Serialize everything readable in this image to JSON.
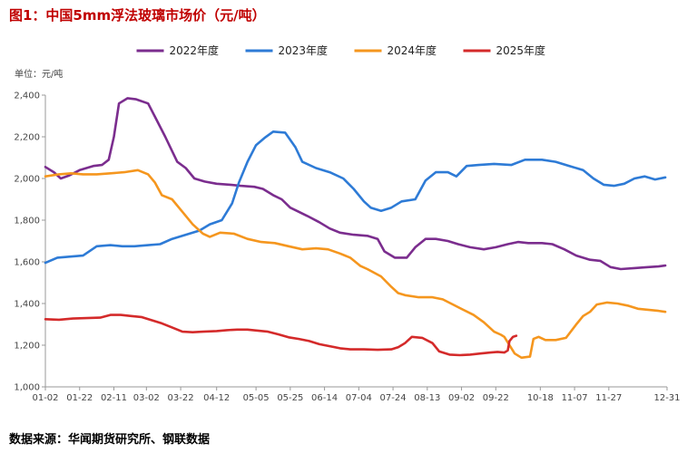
{
  "title": "图1：中国5mm浮法玻璃市场价（元/吨）",
  "source": "数据来源：华闻期货研究所、钢联数据",
  "chart_data": {
    "type": "line",
    "unit_label": "单位：元/吨",
    "title": "中国5mm浮法玻璃市场价（元/吨）",
    "xlabel": "",
    "ylabel": "单位：元/吨",
    "ylim": [
      1000,
      2400
    ],
    "y_ticks": [
      1000,
      1200,
      1400,
      1600,
      1800,
      2000,
      2200,
      2400
    ],
    "y_tick_labels": [
      "1,000",
      "1,200",
      "1,400",
      "1,600",
      "1,800",
      "2,000",
      "2,200",
      "2,400"
    ],
    "x_ticks": [
      "01-02",
      "01-22",
      "02-11",
      "03-02",
      "03-22",
      "04-12",
      "05-05",
      "05-25",
      "06-14",
      "07-04",
      "07-24",
      "08-13",
      "09-02",
      "09-22",
      "10-18",
      "11-07",
      "11-27",
      "12-31"
    ],
    "x_tick_positions": [
      0,
      20,
      40,
      59,
      79,
      100,
      123,
      143,
      163,
      183,
      203,
      223,
      243,
      263,
      289,
      309,
      329,
      363
    ],
    "x_domain": [
      0,
      363
    ],
    "legend_position": "top-center",
    "grid": false,
    "series": [
      {
        "name": "2022年度",
        "color": "#7b2d8e",
        "points": [
          [
            0,
            2055
          ],
          [
            5,
            2030
          ],
          [
            9,
            2000
          ],
          [
            14,
            2015
          ],
          [
            20,
            2040
          ],
          [
            28,
            2060
          ],
          [
            33,
            2065
          ],
          [
            37,
            2090
          ],
          [
            40,
            2200
          ],
          [
            43,
            2360
          ],
          [
            48,
            2385
          ],
          [
            53,
            2380
          ],
          [
            60,
            2360
          ],
          [
            65,
            2280
          ],
          [
            70,
            2200
          ],
          [
            77,
            2080
          ],
          [
            82,
            2050
          ],
          [
            87,
            2000
          ],
          [
            93,
            1985
          ],
          [
            100,
            1975
          ],
          [
            108,
            1970
          ],
          [
            114,
            1965
          ],
          [
            122,
            1960
          ],
          [
            127,
            1950
          ],
          [
            133,
            1920
          ],
          [
            138,
            1900
          ],
          [
            143,
            1860
          ],
          [
            148,
            1840
          ],
          [
            153,
            1820
          ],
          [
            160,
            1790
          ],
          [
            166,
            1760
          ],
          [
            172,
            1740
          ],
          [
            180,
            1730
          ],
          [
            188,
            1725
          ],
          [
            194,
            1710
          ],
          [
            198,
            1650
          ],
          [
            204,
            1620
          ],
          [
            211,
            1620
          ],
          [
            216,
            1670
          ],
          [
            222,
            1710
          ],
          [
            228,
            1710
          ],
          [
            235,
            1700
          ],
          [
            241,
            1685
          ],
          [
            248,
            1670
          ],
          [
            256,
            1660
          ],
          [
            263,
            1670
          ],
          [
            270,
            1685
          ],
          [
            276,
            1695
          ],
          [
            282,
            1690
          ],
          [
            290,
            1690
          ],
          [
            296,
            1685
          ],
          [
            303,
            1660
          ],
          [
            310,
            1630
          ],
          [
            318,
            1610
          ],
          [
            324,
            1605
          ],
          [
            330,
            1575
          ],
          [
            336,
            1565
          ],
          [
            344,
            1570
          ],
          [
            352,
            1575
          ],
          [
            358,
            1578
          ],
          [
            362,
            1582
          ]
        ]
      },
      {
        "name": "2023年度",
        "color": "#2e7bd6",
        "points": [
          [
            0,
            1595
          ],
          [
            7,
            1620
          ],
          [
            14,
            1625
          ],
          [
            22,
            1630
          ],
          [
            30,
            1675
          ],
          [
            38,
            1680
          ],
          [
            45,
            1675
          ],
          [
            52,
            1675
          ],
          [
            60,
            1680
          ],
          [
            67,
            1685
          ],
          [
            74,
            1710
          ],
          [
            82,
            1730
          ],
          [
            90,
            1750
          ],
          [
            96,
            1780
          ],
          [
            103,
            1800
          ],
          [
            109,
            1880
          ],
          [
            113,
            1980
          ],
          [
            118,
            2080
          ],
          [
            123,
            2160
          ],
          [
            128,
            2195
          ],
          [
            133,
            2225
          ],
          [
            140,
            2220
          ],
          [
            146,
            2150
          ],
          [
            150,
            2080
          ],
          [
            158,
            2050
          ],
          [
            166,
            2030
          ],
          [
            174,
            2000
          ],
          [
            180,
            1950
          ],
          [
            186,
            1890
          ],
          [
            190,
            1860
          ],
          [
            196,
            1845
          ],
          [
            202,
            1860
          ],
          [
            208,
            1890
          ],
          [
            216,
            1900
          ],
          [
            222,
            1990
          ],
          [
            228,
            2030
          ],
          [
            235,
            2030
          ],
          [
            240,
            2010
          ],
          [
            246,
            2060
          ],
          [
            253,
            2065
          ],
          [
            262,
            2070
          ],
          [
            272,
            2065
          ],
          [
            280,
            2090
          ],
          [
            290,
            2090
          ],
          [
            298,
            2080
          ],
          [
            306,
            2060
          ],
          [
            314,
            2040
          ],
          [
            320,
            2000
          ],
          [
            326,
            1970
          ],
          [
            332,
            1965
          ],
          [
            338,
            1975
          ],
          [
            344,
            2000
          ],
          [
            350,
            2010
          ],
          [
            356,
            1995
          ],
          [
            362,
            2005
          ]
        ]
      },
      {
        "name": "2024年度",
        "color": "#f5961e",
        "points": [
          [
            0,
            2010
          ],
          [
            8,
            2020
          ],
          [
            15,
            2025
          ],
          [
            22,
            2020
          ],
          [
            30,
            2020
          ],
          [
            38,
            2025
          ],
          [
            46,
            2030
          ],
          [
            54,
            2040
          ],
          [
            60,
            2020
          ],
          [
            64,
            1980
          ],
          [
            68,
            1920
          ],
          [
            74,
            1900
          ],
          [
            80,
            1840
          ],
          [
            86,
            1780
          ],
          [
            92,
            1735
          ],
          [
            96,
            1720
          ],
          [
            102,
            1740
          ],
          [
            110,
            1735
          ],
          [
            118,
            1710
          ],
          [
            126,
            1695
          ],
          [
            134,
            1690
          ],
          [
            142,
            1675
          ],
          [
            150,
            1660
          ],
          [
            158,
            1665
          ],
          [
            165,
            1660
          ],
          [
            172,
            1640
          ],
          [
            178,
            1620
          ],
          [
            184,
            1580
          ],
          [
            188,
            1565
          ],
          [
            196,
            1530
          ],
          [
            202,
            1480
          ],
          [
            206,
            1450
          ],
          [
            210,
            1440
          ],
          [
            218,
            1430
          ],
          [
            226,
            1430
          ],
          [
            232,
            1420
          ],
          [
            238,
            1395
          ],
          [
            244,
            1370
          ],
          [
            250,
            1345
          ],
          [
            256,
            1310
          ],
          [
            262,
            1265
          ],
          [
            266,
            1250
          ],
          [
            268,
            1240
          ],
          [
            274,
            1160
          ],
          [
            278,
            1140
          ],
          [
            283,
            1145
          ],
          [
            285,
            1230
          ],
          [
            288,
            1240
          ],
          [
            292,
            1225
          ],
          [
            298,
            1225
          ],
          [
            304,
            1235
          ],
          [
            310,
            1300
          ],
          [
            314,
            1340
          ],
          [
            318,
            1360
          ],
          [
            322,
            1395
          ],
          [
            328,
            1405
          ],
          [
            334,
            1400
          ],
          [
            340,
            1390
          ],
          [
            346,
            1375
          ],
          [
            352,
            1370
          ],
          [
            358,
            1365
          ],
          [
            362,
            1360
          ]
        ]
      },
      {
        "name": "2025年度",
        "color": "#d42a2a",
        "points": [
          [
            0,
            1325
          ],
          [
            8,
            1322
          ],
          [
            16,
            1328
          ],
          [
            24,
            1330
          ],
          [
            32,
            1332
          ],
          [
            38,
            1345
          ],
          [
            44,
            1345
          ],
          [
            50,
            1340
          ],
          [
            56,
            1335
          ],
          [
            62,
            1320
          ],
          [
            68,
            1305
          ],
          [
            74,
            1285
          ],
          [
            80,
            1265
          ],
          [
            86,
            1262
          ],
          [
            92,
            1265
          ],
          [
            100,
            1268
          ],
          [
            106,
            1272
          ],
          [
            112,
            1275
          ],
          [
            118,
            1275
          ],
          [
            124,
            1270
          ],
          [
            130,
            1265
          ],
          [
            136,
            1252
          ],
          [
            142,
            1238
          ],
          [
            148,
            1230
          ],
          [
            154,
            1220
          ],
          [
            160,
            1205
          ],
          [
            166,
            1195
          ],
          [
            172,
            1185
          ],
          [
            178,
            1180
          ],
          [
            186,
            1180
          ],
          [
            194,
            1178
          ],
          [
            202,
            1180
          ],
          [
            206,
            1190
          ],
          [
            210,
            1210
          ],
          [
            214,
            1240
          ],
          [
            220,
            1235
          ],
          [
            226,
            1210
          ],
          [
            230,
            1170
          ],
          [
            236,
            1155
          ],
          [
            242,
            1152
          ],
          [
            248,
            1155
          ],
          [
            254,
            1160
          ],
          [
            260,
            1165
          ],
          [
            264,
            1168
          ],
          [
            268,
            1165
          ],
          [
            270,
            1175
          ],
          [
            271,
            1220
          ],
          [
            273,
            1240
          ],
          [
            275,
            1245
          ]
        ]
      }
    ]
  }
}
